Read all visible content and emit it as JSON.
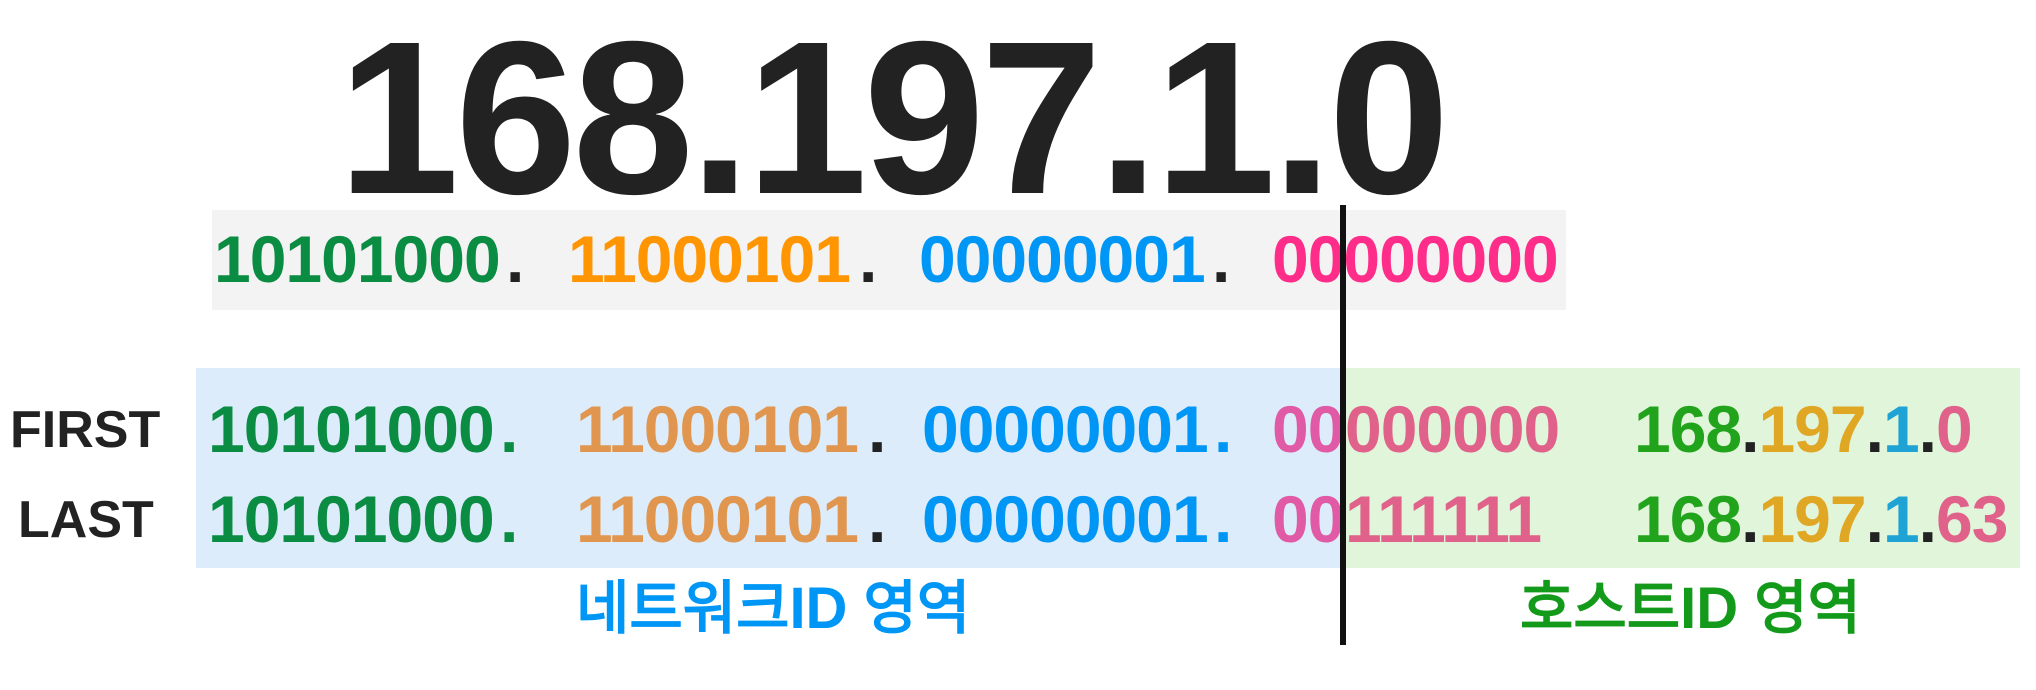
{
  "title": "168.197.1.0",
  "binary_row": {
    "octet1": "10101000",
    "octet2": "11000101",
    "octet3": "00000001",
    "octet4": "00000000",
    "dot": "."
  },
  "first_row": {
    "label": "FIRST",
    "octet1": "10101000",
    "octet2": "11000101",
    "octet3": "00000001",
    "octet4_net": "00",
    "octet4_host": "000000",
    "dot": ".",
    "decimal": {
      "p1": "168",
      "p2": "197",
      "p3": "1",
      "p4": "0"
    }
  },
  "last_row": {
    "label": "LAST",
    "octet1": "10101000",
    "octet2": "11000101",
    "octet3": "00000001",
    "octet4_net": "00",
    "octet4_host": "111111",
    "dot": ".",
    "decimal": {
      "p1": "168",
      "p2": "197",
      "p3": "1",
      "p4": "63"
    }
  },
  "area_labels": {
    "network": "네트워크ID 영역",
    "host": "호스트ID 영역"
  },
  "colors": {
    "octet1": "#0a8c42",
    "octet2_top": "#ff9500",
    "octet2": "#e0964f",
    "octet3": "#0096f5",
    "octet4_top": "#ff2d8a",
    "octet4_net": "#e05aa6",
    "octet4_host": "#e0628a",
    "dec1": "#22a31c",
    "dec2": "#e0a724",
    "dec3": "#1fa2d4",
    "dec4": "#e0628a",
    "network_label": "#0096f5",
    "host_label": "#149a1a",
    "net_box": "#dcecfa",
    "host_box": "#e1f5da"
  }
}
